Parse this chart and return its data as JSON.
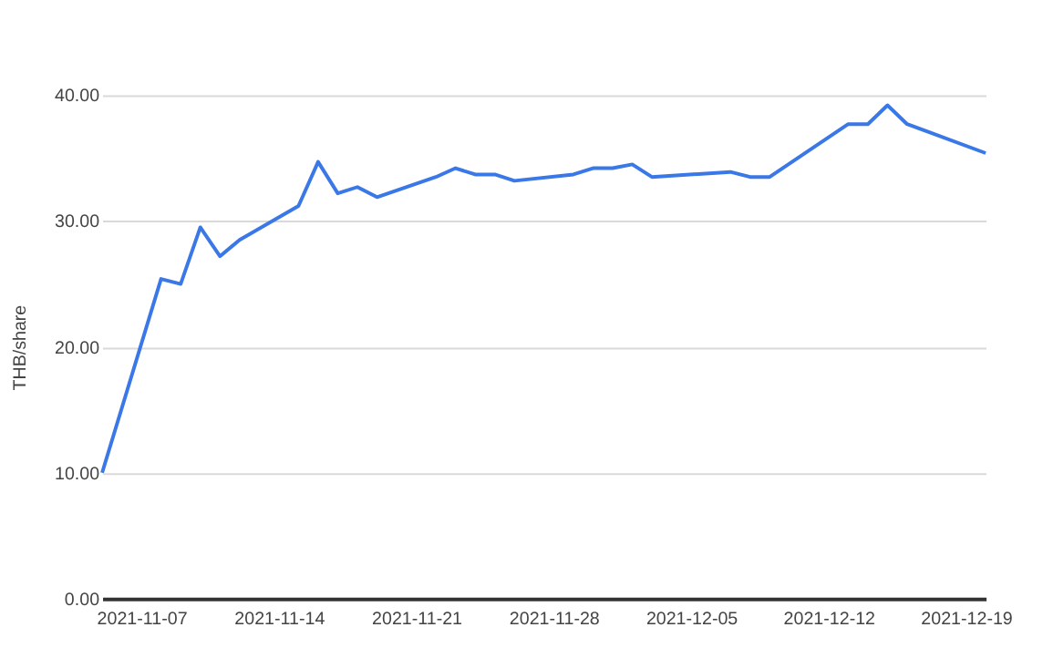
{
  "chart_data": {
    "type": "line",
    "ylabel": "THB/share",
    "x": [
      "2021-11-05",
      "2021-11-08",
      "2021-11-09",
      "2021-11-10",
      "2021-11-11",
      "2021-11-12",
      "2021-11-15",
      "2021-11-16",
      "2021-11-17",
      "2021-11-18",
      "2021-11-19",
      "2021-11-22",
      "2021-11-23",
      "2021-11-24",
      "2021-11-25",
      "2021-11-26",
      "2021-11-29",
      "2021-11-30",
      "2021-12-01",
      "2021-12-02",
      "2021-12-03",
      "2021-12-07",
      "2021-12-08",
      "2021-12-09",
      "2021-12-13",
      "2021-12-14",
      "2021-12-15",
      "2021-12-16",
      "2021-12-20"
    ],
    "series": [
      {
        "color": "#3b78e7",
        "values": [
          10.0,
          25.4,
          25.0,
          29.5,
          27.2,
          28.5,
          31.2,
          34.7,
          32.2,
          32.7,
          31.9,
          33.5,
          34.2,
          33.7,
          33.7,
          33.2,
          33.7,
          34.2,
          34.2,
          34.5,
          33.5,
          33.9,
          33.5,
          33.5,
          37.7,
          37.7,
          39.2,
          37.7,
          35.4
        ]
      }
    ],
    "xlim": [
      "2021-11-05",
      "2021-12-20"
    ],
    "xticks": [
      "2021-11-07",
      "2021-11-14",
      "2021-11-21",
      "2021-11-28",
      "2021-12-05",
      "2021-12-12",
      "2021-12-19"
    ],
    "ylim": [
      0,
      40
    ],
    "yticks": [
      {
        "value": 0,
        "label": "0.00"
      },
      {
        "value": 10,
        "label": "10.00"
      },
      {
        "value": 20,
        "label": "20.00"
      },
      {
        "value": 30,
        "label": "30.00"
      },
      {
        "value": 40,
        "label": "40.00"
      }
    ],
    "grid": "y",
    "legend": false,
    "marker": "none",
    "line_style": "solid"
  }
}
